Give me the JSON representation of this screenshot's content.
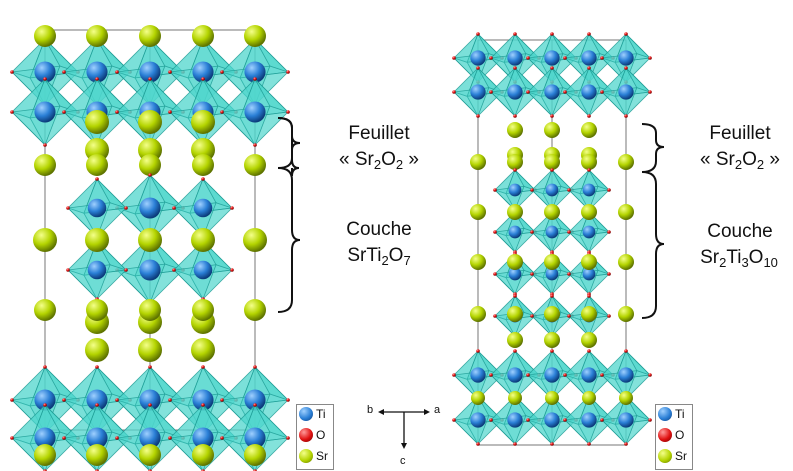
{
  "labels": {
    "feuillet": "Feuillet",
    "sr2o2": {
      "open": "« Sr",
      "s1": "2",
      "mid": "O",
      "s2": "2",
      "close": " »"
    },
    "couche": "Couche",
    "srti2o7": {
      "a": "SrTi",
      "s1": "2",
      "b": "O",
      "s2": "7"
    },
    "sr2ti3o10": {
      "a": "Sr",
      "s1": "2",
      "b": "Ti",
      "s2": "3",
      "c": "O",
      "s3": "10"
    }
  },
  "legend": {
    "items": [
      {
        "symbol": "Ti",
        "color": "#2a7fd6"
      },
      {
        "symbol": "O",
        "color": "#e01010"
      },
      {
        "symbol": "Sr",
        "color": "#a8c800"
      }
    ]
  },
  "axes": {
    "b": "b",
    "a": "a",
    "c": "c"
  },
  "colors": {
    "octahedron": "#4fd6cc",
    "octahedron_edge": "#1a9a92",
    "cell": "#555555"
  }
}
